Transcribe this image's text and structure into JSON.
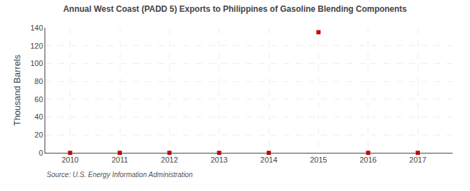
{
  "chart_data": {
    "type": "scatter",
    "title": "Annual West Coast (PADD 5) Exports to Philippines of Gasoline Blending Components",
    "ylabel": "Thousand Barrels",
    "source": "Source: U.S. Energy Information Administration",
    "x": [
      2010,
      2011,
      2012,
      2013,
      2014,
      2015,
      2016,
      2017
    ],
    "values": [
      0,
      0,
      0,
      0,
      0,
      135,
      0,
      0
    ],
    "color": "#cc0000",
    "marker": "square",
    "xlim": [
      2009.5,
      2017.7
    ],
    "xticks": [
      2010,
      2011,
      2012,
      2013,
      2014,
      2015,
      2016,
      2017
    ],
    "ylim": [
      0,
      140
    ],
    "yticks": [
      0,
      20,
      40,
      60,
      80,
      100,
      120,
      140
    ],
    "grid": true
  }
}
